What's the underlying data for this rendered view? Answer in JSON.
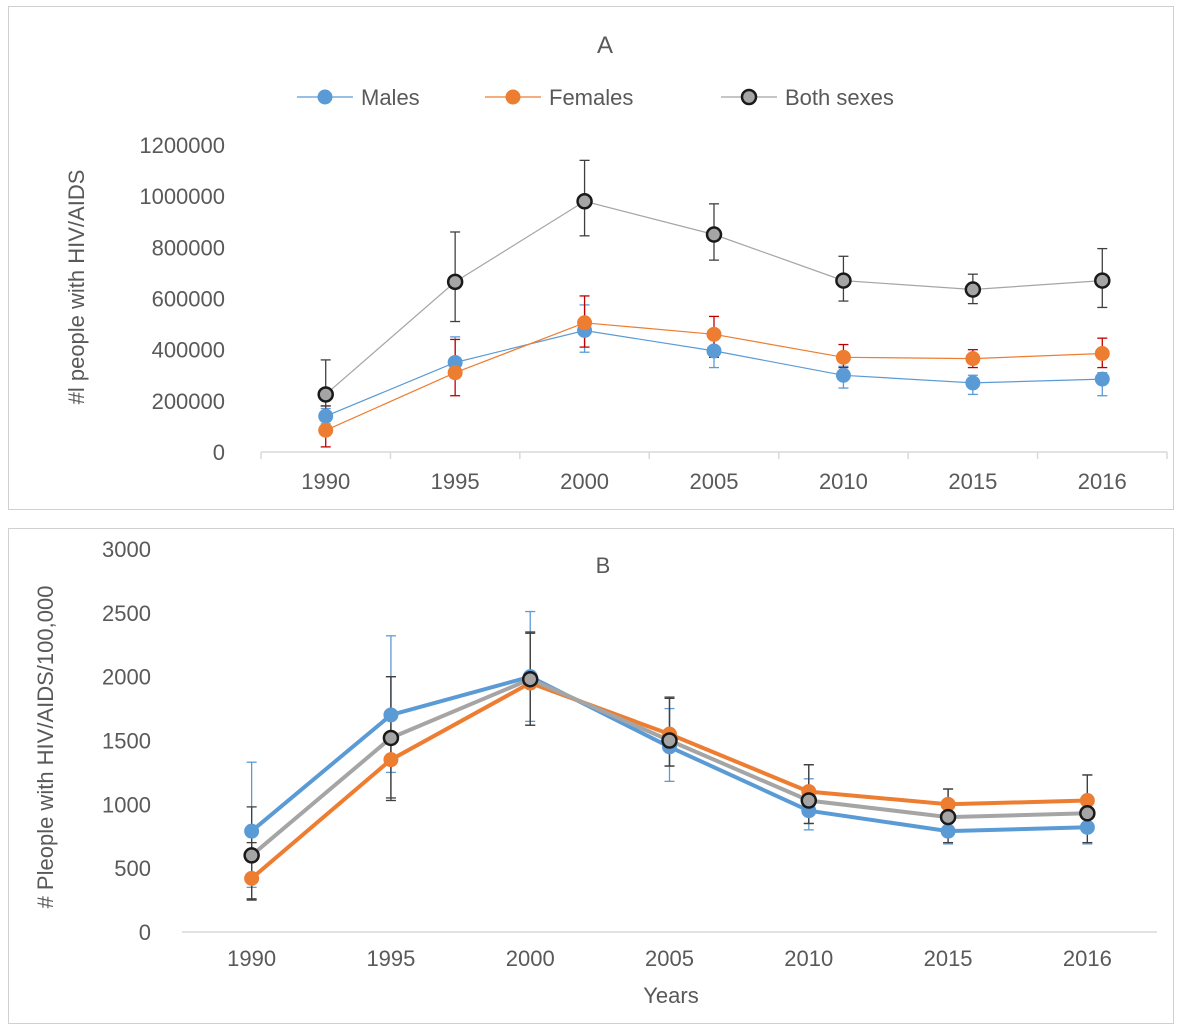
{
  "chart_data": [
    {
      "type": "line",
      "title": "A",
      "xlabel": "",
      "ylabel": "#l people with HIV/AIDS",
      "ylim": [
        0,
        1200000
      ],
      "yticks": [
        0,
        200000,
        400000,
        600000,
        800000,
        1000000,
        1200000
      ],
      "categories": [
        "1990",
        "1995",
        "2000",
        "2005",
        "2010",
        "2015",
        "2016"
      ],
      "grid": false,
      "legend": "top",
      "series": [
        {
          "name": "Males",
          "color": "#5b9bd5",
          "values": [
            140000,
            350000,
            475000,
            395000,
            300000,
            270000,
            285000
          ],
          "err_low": [
            110000,
            290000,
            390000,
            330000,
            250000,
            225000,
            220000
          ],
          "err_high": [
            170000,
            450000,
            575000,
            440000,
            335000,
            300000,
            310000
          ]
        },
        {
          "name": "Females",
          "color": "#ed7d31",
          "values": [
            85000,
            310000,
            505000,
            460000,
            370000,
            365000,
            385000
          ],
          "err_low": [
            20000,
            220000,
            410000,
            370000,
            330000,
            330000,
            330000
          ],
          "err_high": [
            180000,
            440000,
            610000,
            530000,
            420000,
            400000,
            445000
          ]
        },
        {
          "name": "Both sexes",
          "color": "#a5a5a5",
          "values": [
            225000,
            665000,
            980000,
            850000,
            670000,
            635000,
            670000
          ],
          "err_low": [
            180000,
            510000,
            845000,
            750000,
            590000,
            580000,
            565000
          ],
          "err_high": [
            360000,
            860000,
            1140000,
            970000,
            765000,
            695000,
            795000
          ]
        }
      ]
    },
    {
      "type": "line",
      "title": "B",
      "xlabel": "Years",
      "ylabel": "# Pleople with HIV/AIDS/100,000",
      "ylim": [
        0,
        3000
      ],
      "yticks": [
        0,
        500,
        1000,
        1500,
        2000,
        2500,
        3000
      ],
      "categories": [
        "1990",
        "1995",
        "2000",
        "2005",
        "2010",
        "2015",
        "2016"
      ],
      "grid": false,
      "series": [
        {
          "name": "Males",
          "color": "#5b9bd5",
          "values": [
            790,
            1700,
            2000,
            1450,
            950,
            790,
            820
          ],
          "err_low": [
            350,
            1250,
            1650,
            1180,
            800,
            690,
            690
          ],
          "err_high": [
            1330,
            2320,
            2510,
            1750,
            1200,
            900,
            960
          ]
        },
        {
          "name": "Females",
          "color": "#ed7d31",
          "values": [
            420,
            1350,
            1950,
            1550,
            1100,
            1000,
            1030
          ],
          "err_low": [
            250,
            1030,
            1620,
            1300,
            850,
            850,
            860
          ],
          "err_high": [
            700,
            2000,
            2350,
            1840,
            1310,
            1120,
            1230
          ]
        },
        {
          "name": "Both sexes",
          "color": "#a5a5a5",
          "values": [
            600,
            1520,
            1980,
            1500,
            1030,
            900,
            930
          ],
          "err_low": [
            260,
            1050,
            1620,
            1300,
            850,
            700,
            700
          ],
          "err_high": [
            980,
            2000,
            2340,
            1830,
            1310,
            1120,
            1230
          ]
        }
      ]
    }
  ]
}
